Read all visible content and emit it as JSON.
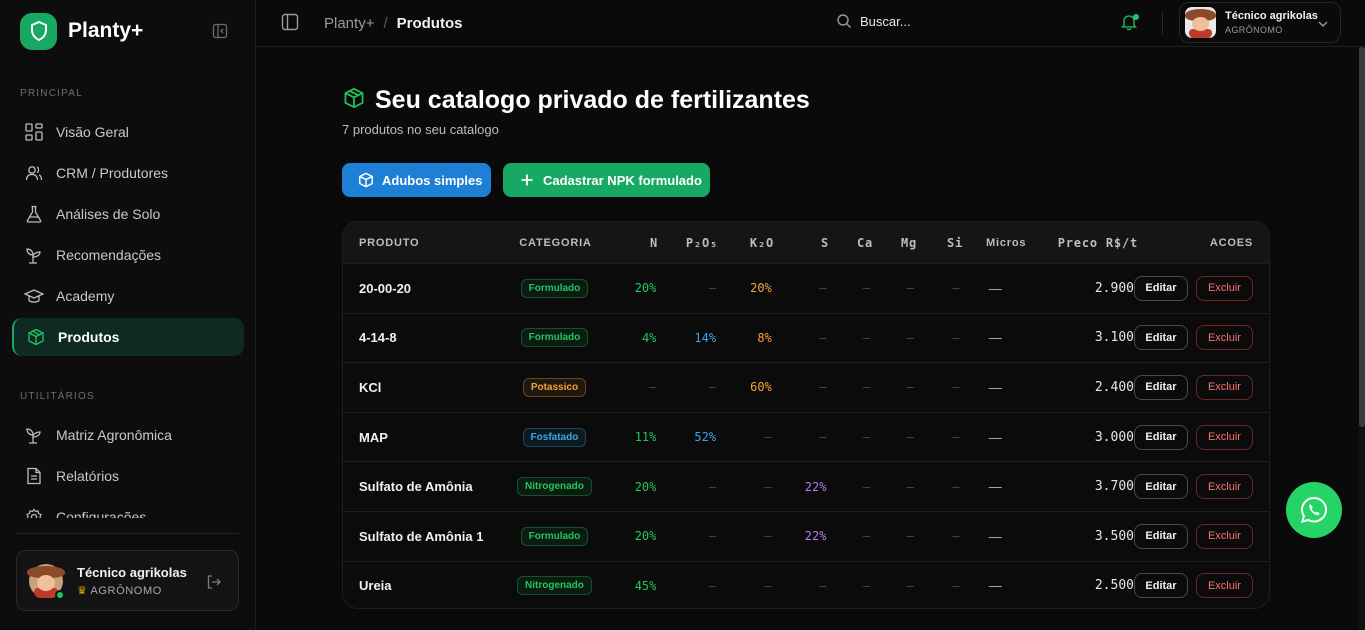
{
  "brand": {
    "name": "Planty+"
  },
  "sidebar": {
    "sections": [
      {
        "label": "PRINCIPAL",
        "items": [
          {
            "label": "Visão Geral",
            "icon": "grid-icon"
          },
          {
            "label": "CRM / Produtores",
            "icon": "users-icon"
          },
          {
            "label": "Análises de Solo",
            "icon": "flask-icon"
          },
          {
            "label": "Recomendações",
            "icon": "sprout-icon"
          },
          {
            "label": "Academy",
            "icon": "graduation-cap-icon"
          },
          {
            "label": "Produtos",
            "icon": "box-icon",
            "active": true
          }
        ]
      },
      {
        "label": "UTILITÁRIOS",
        "items": [
          {
            "label": "Matriz Agronômica",
            "icon": "sprout-icon"
          },
          {
            "label": "Relatórios",
            "icon": "document-icon"
          },
          {
            "label": "Configurações",
            "icon": "gear-icon"
          }
        ]
      }
    ],
    "user": {
      "name": "Técnico agrikolas",
      "role": "AGRÔNOMO"
    }
  },
  "topbar": {
    "breadcrumb": [
      "Planty+",
      "/",
      "Produtos"
    ],
    "search_label": "Buscar...",
    "user": {
      "name": "Técnico agrikolas",
      "role": "AGRÔNOMO"
    }
  },
  "page": {
    "title": "Seu catalogo privado de fertilizantes",
    "subtitle": "7 produtos no seu catalogo",
    "buttons": {
      "simple": "Adubos simples",
      "npk": "Cadastrar NPK formulado"
    }
  },
  "table": {
    "headers": {
      "produto": "PRODUTO",
      "categoria": "CATEGORIA",
      "n": "N",
      "p": "P₂O₅",
      "k": "K₂O",
      "s": "S",
      "ca": "Ca",
      "mg": "Mg",
      "si": "Si",
      "micros": "Micros",
      "preco": "Preco R$/t",
      "acoes": "ACOES"
    },
    "edit_label": "Editar",
    "delete_label": "Excluir",
    "rows": [
      {
        "produto": "20-00-20",
        "categoria": "Formulado",
        "n": "20%",
        "p": "—",
        "k": "20%",
        "s": "—",
        "ca": "—",
        "mg": "—",
        "si": "—",
        "micros": "—",
        "preco": "2.900"
      },
      {
        "produto": "4-14-8",
        "categoria": "Formulado",
        "n": "4%",
        "p": "14%",
        "k": "8%",
        "s": "—",
        "ca": "—",
        "mg": "—",
        "si": "—",
        "micros": "—",
        "preco": "3.100"
      },
      {
        "produto": "KCl",
        "categoria": "Potassico",
        "n": "—",
        "p": "—",
        "k": "60%",
        "s": "—",
        "ca": "—",
        "mg": "—",
        "si": "—",
        "micros": "—",
        "preco": "2.400"
      },
      {
        "produto": "MAP",
        "categoria": "Fosfatado",
        "n": "11%",
        "p": "52%",
        "k": "—",
        "s": "—",
        "ca": "—",
        "mg": "—",
        "si": "—",
        "micros": "—",
        "preco": "3.000"
      },
      {
        "produto": "Sulfato de Amônia",
        "categoria": "Nitrogenado",
        "n": "20%",
        "p": "—",
        "k": "—",
        "s": "22%",
        "ca": "—",
        "mg": "—",
        "si": "—",
        "micros": "—",
        "preco": "3.700"
      },
      {
        "produto": "Sulfato de Amônia 1",
        "categoria": "Formulado",
        "n": "20%",
        "p": "—",
        "k": "—",
        "s": "22%",
        "ca": "—",
        "mg": "—",
        "si": "—",
        "micros": "—",
        "preco": "3.500"
      },
      {
        "produto": "Ureia",
        "categoria": "Nitrogenado",
        "n": "45%",
        "p": "—",
        "k": "—",
        "s": "—",
        "ca": "—",
        "mg": "—",
        "si": "—",
        "micros": "—",
        "preco": "2.500"
      }
    ]
  },
  "colors": {
    "accent": "#17a864",
    "blue": "#1d7fd6",
    "nitrogen": "#22c55e",
    "phosphorus": "#38a7e8",
    "potassium": "#f2a33a",
    "sulfur": "#b57bee",
    "danger": "#f87171"
  },
  "category_colors": {
    "Formulado": "#22c55e",
    "Potassico": "#f2a33a",
    "Fosfatado": "#38a7e8",
    "Nitrogenado": "#22c55e"
  }
}
